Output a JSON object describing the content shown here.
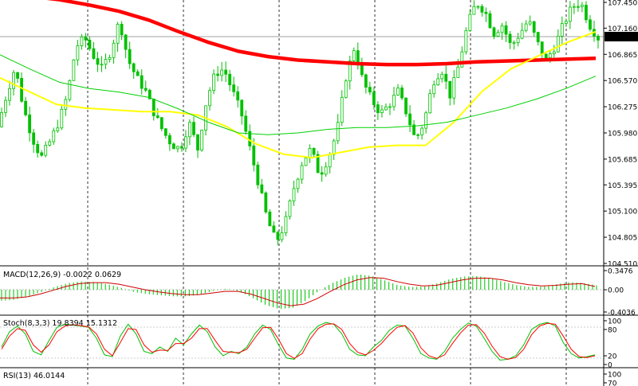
{
  "chart_data": [
    {
      "type": "candlestick",
      "panel": "price",
      "price_axis": {
        "ticks": [
          "107.450",
          "107.160",
          "106.865",
          "106.570",
          "106.275",
          "105.980",
          "105.685",
          "105.395",
          "105.100",
          "104.805",
          "104.510"
        ],
        "range": [
          104.51,
          107.45
        ],
        "current_price": "107.047"
      },
      "price_path": [
        106.05,
        106.4,
        106.72,
        106.25,
        105.92,
        105.7,
        105.88,
        106.1,
        106.4,
        106.95,
        107.05,
        106.85,
        106.7,
        106.9,
        107.25,
        106.8,
        106.6,
        106.45,
        106.2,
        106.0,
        105.85,
        105.8,
        106.1,
        105.8,
        106.35,
        106.65,
        106.7,
        106.45,
        106.2,
        105.8,
        105.4,
        105.0,
        104.75,
        104.95,
        105.35,
        105.65,
        105.8,
        105.5,
        105.7,
        106.0,
        106.6,
        106.95,
        106.55,
        106.35,
        106.2,
        106.3,
        106.45,
        106.2,
        105.9,
        106.1,
        106.55,
        106.7,
        106.4,
        106.75,
        107.2,
        107.45,
        107.35,
        107.1,
        107.2,
        106.95,
        107.1,
        107.25,
        107.0,
        106.8,
        106.95,
        107.2,
        107.4,
        107.45,
        107.2,
        107.05
      ]
    },
    {
      "type": "line",
      "panel": "price",
      "series": [
        {
          "color": "#ff0000",
          "values": [
            107.55,
            107.52,
            107.48,
            107.42,
            107.35,
            107.25,
            107.12,
            107.0,
            106.9,
            106.84,
            106.8,
            106.78,
            106.76,
            106.75,
            106.75,
            106.76,
            106.78,
            106.79,
            106.8,
            106.81,
            106.82
          ]
        },
        {
          "color": "#ffff00",
          "values": [
            106.6,
            106.45,
            106.3,
            106.26,
            106.24,
            106.22,
            106.22,
            106.18,
            106.05,
            105.86,
            105.74,
            105.7,
            105.76,
            105.82,
            105.84,
            105.84,
            106.1,
            106.45,
            106.7,
            106.85,
            107.0,
            107.12
          ]
        },
        {
          "color": "#00d000",
          "values": [
            106.86,
            106.7,
            106.55,
            106.48,
            106.44,
            106.38,
            106.25,
            106.1,
            105.98,
            105.96,
            105.98,
            106.02,
            106.04,
            106.04,
            106.06,
            106.1,
            106.18,
            106.26,
            106.36,
            106.48,
            106.62
          ]
        }
      ]
    },
    {
      "type": "bar",
      "panel": "macd",
      "title": "MACD(12,26,9) -0.0022 0.0629",
      "y_ticks": [
        "0.3476",
        "0.00",
        "-0.4036"
      ],
      "ylim": [
        -0.4036,
        0.3476
      ],
      "histogram": [
        -0.2,
        -0.18,
        -0.12,
        -0.04,
        0.05,
        0.12,
        0.15,
        0.14,
        0.1,
        0.04,
        -0.04,
        -0.08,
        -0.1,
        -0.12,
        -0.12,
        -0.09,
        -0.02,
        0.02,
        -0.03,
        -0.15,
        -0.28,
        -0.35,
        -0.33,
        -0.2,
        -0.02,
        0.12,
        0.22,
        0.28,
        0.25,
        0.17,
        0.08,
        0.05,
        0.06,
        0.12,
        0.2,
        0.24,
        0.25,
        0.21,
        0.14,
        0.08,
        0.05,
        0.06,
        0.1,
        0.14,
        0.12,
        0.08
      ],
      "signal": [
        -0.15,
        -0.15,
        -0.13,
        -0.08,
        -0.01,
        0.06,
        0.11,
        0.13,
        0.13,
        0.1,
        0.05,
        0.0,
        -0.04,
        -0.07,
        -0.09,
        -0.09,
        -0.06,
        -0.03,
        -0.03,
        -0.08,
        -0.16,
        -0.24,
        -0.29,
        -0.26,
        -0.16,
        -0.03,
        0.09,
        0.18,
        0.22,
        0.21,
        0.15,
        0.1,
        0.07,
        0.08,
        0.13,
        0.18,
        0.21,
        0.21,
        0.18,
        0.13,
        0.09,
        0.07,
        0.08,
        0.1,
        0.11,
        0.06
      ]
    },
    {
      "type": "line",
      "panel": "stochastic",
      "title": "Stoch(8,3,3) 19.8394 15.1312",
      "y_ticks": [
        "100",
        "80",
        "20",
        "0"
      ],
      "ylim": [
        0,
        100
      ],
      "series": [
        {
          "color": "#00c000",
          "values": [
            40,
            75,
            88,
            70,
            30,
            22,
            55,
            85,
            92,
            90,
            88,
            85,
            60,
            22,
            18,
            65,
            92,
            70,
            30,
            25,
            40,
            30,
            60,
            45,
            70,
            90,
            75,
            40,
            20,
            30,
            25,
            40,
            70,
            90,
            80,
            45,
            15,
            12,
            35,
            70,
            88,
            96,
            92,
            70,
            35,
            22,
            20,
            40,
            55,
            78,
            90,
            88,
            60,
            25,
            15,
            12,
            30,
            60,
            80,
            95,
            88,
            60,
            30,
            10,
            12,
            20,
            45,
            80,
            92,
            96,
            88,
            50,
            25,
            15,
            18,
            22
          ]
        },
        {
          "color": "#ff0000",
          "values": [
            35,
            65,
            82,
            78,
            45,
            28,
            45,
            75,
            88,
            91,
            89,
            86,
            70,
            35,
            20,
            50,
            82,
            80,
            45,
            28,
            33,
            32,
            48,
            48,
            60,
            82,
            82,
            55,
            30,
            28,
            27,
            35,
            60,
            84,
            85,
            58,
            25,
            14,
            25,
            58,
            82,
            92,
            93,
            80,
            48,
            28,
            22,
            32,
            48,
            68,
            85,
            89,
            72,
            38,
            20,
            14,
            22,
            48,
            72,
            90,
            91,
            72,
            42,
            18,
            12,
            16,
            35,
            68,
            88,
            94,
            92,
            65,
            35,
            18,
            16,
            20
          ]
        }
      ]
    },
    {
      "type": "line",
      "panel": "rsi",
      "title": "RSI(13) 46.0144",
      "y_ticks": [
        "100",
        "70"
      ],
      "ylim": [
        0,
        100
      ]
    }
  ]
}
